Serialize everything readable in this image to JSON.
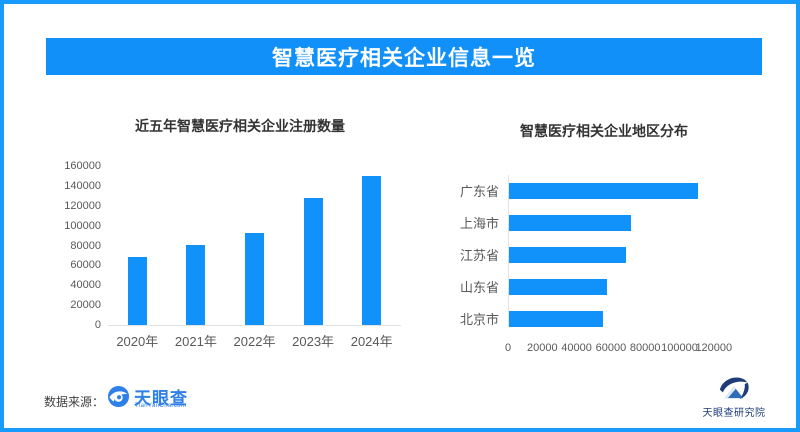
{
  "header": {
    "title": "智慧医疗相关企业信息一览",
    "bg_color": "#1190fa",
    "text_color": "#ffffff"
  },
  "accent_color": "#1192fb",
  "border_color": "#189bfc",
  "chart_data": [
    {
      "type": "bar",
      "title": "近五年智慧医疗相关企业注册数量",
      "categories": [
        "2020年",
        "2021年",
        "2022年",
        "2023年",
        "2024年"
      ],
      "values": [
        68000,
        81000,
        93000,
        128000,
        150000
      ],
      "ylim": [
        0,
        160000
      ],
      "ytick_step": 20000,
      "yticks": [
        "0",
        "20000",
        "40000",
        "60000",
        "80000",
        "100000",
        "120000",
        "140000",
        "160000"
      ],
      "bar_color": "#1192fb",
      "grid": false,
      "legend": "none"
    },
    {
      "type": "bar-horizontal",
      "title": "智慧医疗相关企业地区分布",
      "categories": [
        "广东省",
        "上海市",
        "江苏省",
        "山东省",
        "北京市"
      ],
      "values": [
        110000,
        71000,
        68000,
        57000,
        55000
      ],
      "xlim": [
        0,
        120000
      ],
      "xtick_step": 20000,
      "xticks": [
        "0",
        "20000",
        "40000",
        "60000",
        "80000",
        "100000",
        "120000"
      ],
      "bar_color": "#1192fb",
      "grid": false,
      "legend": "none"
    }
  ],
  "footer": {
    "source_label": "数据来源：",
    "tianyancha_logo": {
      "name": "天眼查",
      "subtext": "TianYanCha.com"
    },
    "research_logo": {
      "name": "天眼查研究院"
    }
  }
}
